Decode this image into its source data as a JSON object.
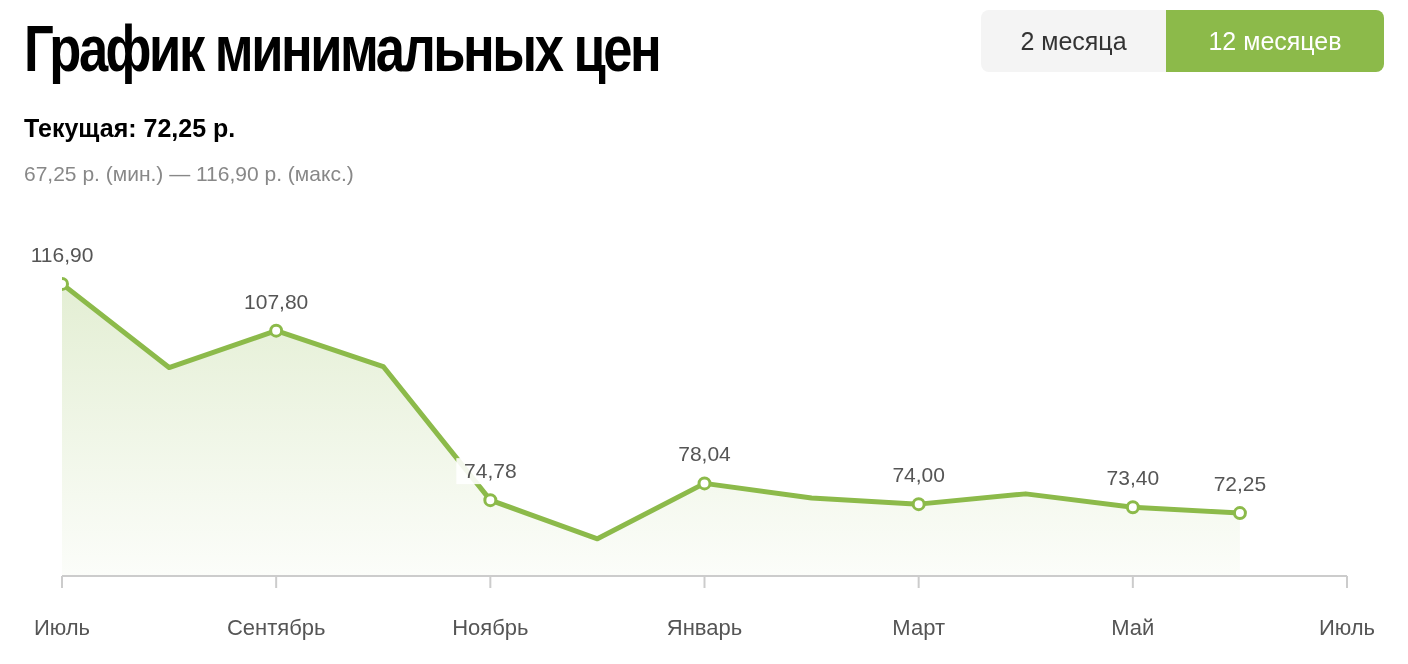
{
  "chart_data": {
    "type": "area",
    "title": "График минимальных цен",
    "subtitle": "Текущая: 72,25 р.",
    "annotations": [
      "67,25 р. (мин.) — 116,90 р. (макс.)",
      "2 месяца",
      "12 месяцев"
    ],
    "categories": [
      "Июль",
      null,
      "Сентябрь",
      null,
      "Ноябрь",
      null,
      "Январь",
      null,
      "Март",
      null,
      "Май",
      null,
      "Июль"
    ],
    "series": [
      {
        "color": "#8cba4a",
        "values": [
          116.9,
          100.6,
          107.8,
          100.8,
          74.78,
          67.25,
          78.04,
          75.2,
          74.0,
          76.0,
          73.4,
          72.25,
          null
        ],
        "value_labels": [
          "116,90",
          null,
          "107,80",
          null,
          "74,78",
          null,
          "78,04",
          null,
          "74,00",
          null,
          "73,40",
          "72,25",
          null
        ]
      }
    ],
    "grid": false,
    "legend": false,
    "tick_labels": "x",
    "marker": "circle",
    "line_style": "solid"
  }
}
